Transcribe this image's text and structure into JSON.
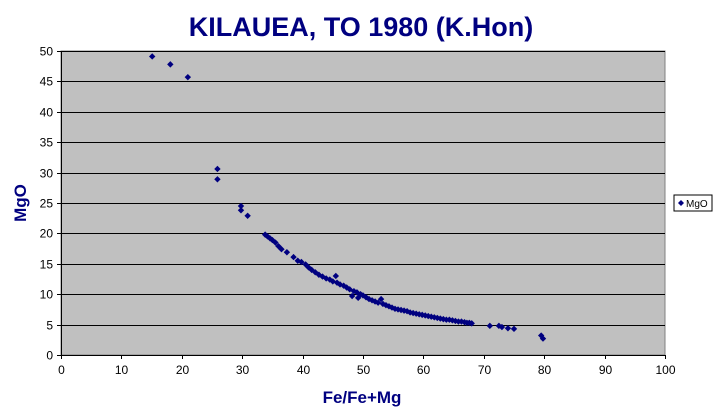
{
  "colors": {
    "plot_background": "#c0c0c0",
    "gridline": "#000000",
    "marker": "#000080",
    "title_text": "#000080"
  },
  "chart_data": {
    "type": "scatter",
    "title": "KILAUEA, TO 1980 (K.Hon)",
    "xlabel": "Fe/Fe+Mg",
    "ylabel": "MgO",
    "xlim": [
      0,
      100
    ],
    "ylim": [
      0,
      50
    ],
    "xticks": [
      0,
      10,
      20,
      30,
      40,
      50,
      60,
      70,
      80,
      90,
      100
    ],
    "yticks": [
      0,
      5,
      10,
      15,
      20,
      25,
      30,
      35,
      40,
      45,
      50
    ],
    "grid": "horizontal",
    "legend": {
      "position": "right",
      "entries": [
        "MgO"
      ]
    },
    "marker": "diamond",
    "series": [
      {
        "name": "MgO",
        "points": [
          [
            15.1,
            49.1
          ],
          [
            18.1,
            47.8
          ],
          [
            21.0,
            45.7
          ],
          [
            25.9,
            30.6
          ],
          [
            25.9,
            28.9
          ],
          [
            29.8,
            24.5
          ],
          [
            29.8,
            23.8
          ],
          [
            30.9,
            22.9
          ],
          [
            33.8,
            19.8
          ],
          [
            34.2,
            19.5
          ],
          [
            34.6,
            19.2
          ],
          [
            35.0,
            18.9
          ],
          [
            35.5,
            18.5
          ],
          [
            36.0,
            17.9
          ],
          [
            36.5,
            17.4
          ],
          [
            37.4,
            16.9
          ],
          [
            38.5,
            16.1
          ],
          [
            39.2,
            15.5
          ],
          [
            39.8,
            15.3
          ],
          [
            40.5,
            14.9
          ],
          [
            41.0,
            14.4
          ],
          [
            41.5,
            14.0
          ],
          [
            42.1,
            13.6
          ],
          [
            42.7,
            13.2
          ],
          [
            43.3,
            12.9
          ],
          [
            43.9,
            12.6
          ],
          [
            44.5,
            12.4
          ],
          [
            45.0,
            12.1
          ],
          [
            45.5,
            13.0
          ],
          [
            45.7,
            11.9
          ],
          [
            46.2,
            11.6
          ],
          [
            46.8,
            11.4
          ],
          [
            47.3,
            11.1
          ],
          [
            47.8,
            10.8
          ],
          [
            48.2,
            9.7
          ],
          [
            48.5,
            10.5
          ],
          [
            49.0,
            10.3
          ],
          [
            49.2,
            9.4
          ],
          [
            49.6,
            10.0
          ],
          [
            50.0,
            9.8
          ],
          [
            50.5,
            9.5
          ],
          [
            51.0,
            9.2
          ],
          [
            51.5,
            9.0
          ],
          [
            52.0,
            8.8
          ],
          [
            52.5,
            8.6
          ],
          [
            53.0,
            9.2
          ],
          [
            53.3,
            8.4
          ],
          [
            53.8,
            8.2
          ],
          [
            54.3,
            8.0
          ],
          [
            54.8,
            7.8
          ],
          [
            55.3,
            7.6
          ],
          [
            55.8,
            7.5
          ],
          [
            56.3,
            7.4
          ],
          [
            56.8,
            7.3
          ],
          [
            57.3,
            7.2
          ],
          [
            57.8,
            7.0
          ],
          [
            58.3,
            6.9
          ],
          [
            58.8,
            6.8
          ],
          [
            59.3,
            6.7
          ],
          [
            59.8,
            6.6
          ],
          [
            60.3,
            6.5
          ],
          [
            60.8,
            6.4
          ],
          [
            61.3,
            6.3
          ],
          [
            61.8,
            6.2
          ],
          [
            62.3,
            6.1
          ],
          [
            62.8,
            6.0
          ],
          [
            63.3,
            5.9
          ],
          [
            63.8,
            5.8
          ],
          [
            64.3,
            5.8
          ],
          [
            64.8,
            5.7
          ],
          [
            65.3,
            5.6
          ],
          [
            65.8,
            5.5
          ],
          [
            66.3,
            5.5
          ],
          [
            66.8,
            5.4
          ],
          [
            67.2,
            5.3
          ],
          [
            67.6,
            5.3
          ],
          [
            68.0,
            5.2
          ],
          [
            71.0,
            4.8
          ],
          [
            72.5,
            4.8
          ],
          [
            73.0,
            4.6
          ],
          [
            74.0,
            4.4
          ],
          [
            75.0,
            4.3
          ],
          [
            79.5,
            3.2
          ],
          [
            79.8,
            2.7
          ]
        ]
      }
    ]
  }
}
